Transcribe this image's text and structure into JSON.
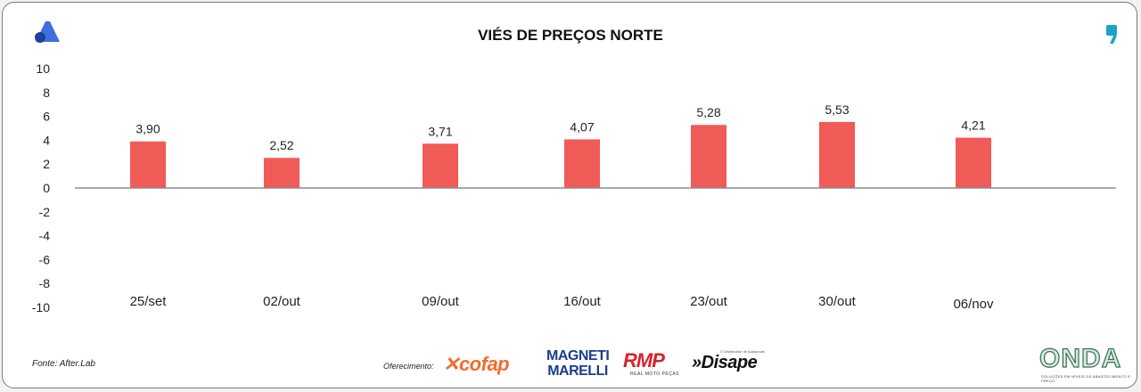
{
  "chart_data": {
    "type": "bar",
    "title": "VIÉS DE PREÇOS NORTE",
    "categories": [
      "25/set",
      "02/out",
      "09/out",
      "16/out",
      "23/out",
      "30/out",
      "06/nov"
    ],
    "values": [
      3.9,
      2.52,
      3.71,
      4.07,
      5.28,
      5.53,
      4.21
    ],
    "data_labels": [
      "3,90",
      "2,52",
      "3,71",
      "4,07",
      "5,28",
      "5,53",
      "4,21"
    ],
    "yticks": [
      10,
      8,
      6,
      4,
      2,
      0,
      -2,
      -4,
      -6,
      -8,
      -10
    ],
    "ylim": [
      -10,
      10
    ],
    "xlabel": "",
    "ylabel": "",
    "grid": false,
    "bar_color": "#f05a57",
    "axis_color": "#8c8c8c"
  },
  "footer": {
    "source": "Fonte: After.Lab",
    "offered_by": "Oferecimento:",
    "sponsors": {
      "cofap": "cofap",
      "marelli_line1": "MAGNETI",
      "marelli_line2": "MARELLI",
      "rmp": "RMP",
      "rmp_sub": "REAL MOTO PEÇAS",
      "disape": "»Disape",
      "disape_sub": "O Distribuidor de Autopeças"
    },
    "onda": "ONDA",
    "onda_sub": "SOLUÇÕES EM NÍVEIS DE ABASTECIMENTO E PREÇO"
  }
}
